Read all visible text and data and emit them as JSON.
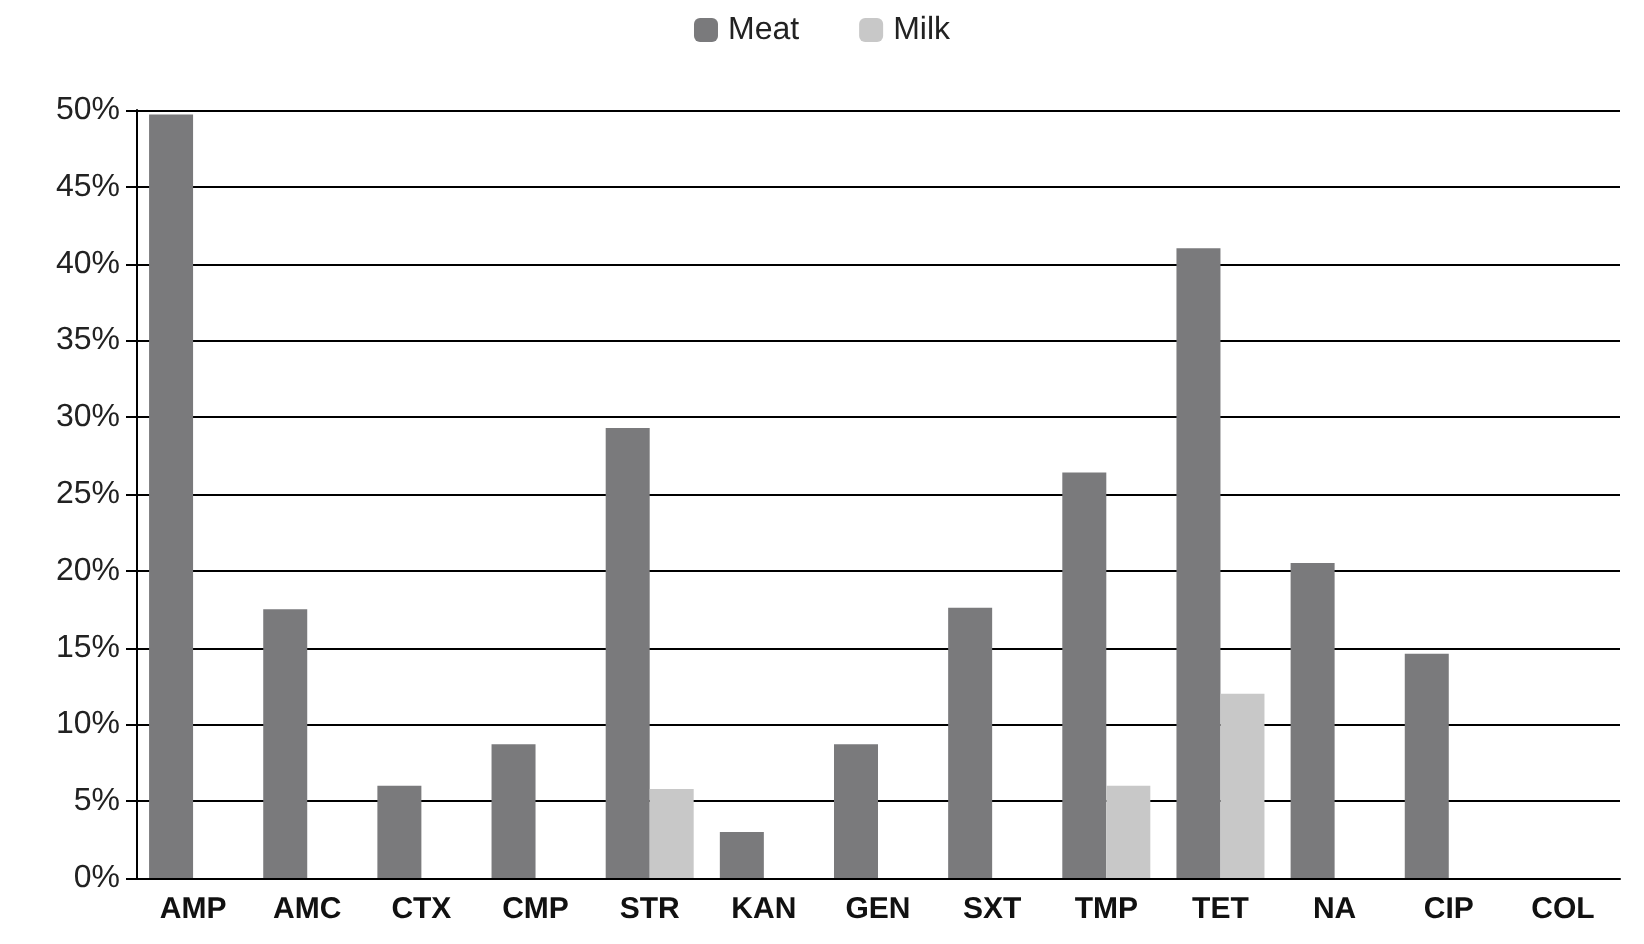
{
  "chart_data": {
    "type": "bar",
    "categories": [
      "AMP",
      "AMC",
      "CTX",
      "CMP",
      "STR",
      "KAN",
      "GEN",
      "SXT",
      "TMP",
      "TET",
      "NA",
      "CIP",
      "COL"
    ],
    "series": [
      {
        "name": "Meat",
        "color": "#7a7a7c",
        "values": [
          49.7,
          17.5,
          6,
          8.7,
          29.3,
          3,
          8.7,
          17.6,
          26.4,
          41,
          20.5,
          14.6,
          0
        ]
      },
      {
        "name": "Milk",
        "color": "#c8c8c8",
        "values": [
          0,
          0,
          0,
          0,
          5.8,
          0,
          0,
          0,
          6,
          12,
          0,
          0,
          0
        ]
      }
    ],
    "ylim": [
      0,
      50
    ],
    "yticks": [
      {
        "value": 0,
        "label": "0%"
      },
      {
        "value": 5,
        "label": "5%"
      },
      {
        "value": 10,
        "label": "10%"
      },
      {
        "value": 15,
        "label": "15%"
      },
      {
        "value": 20,
        "label": "20%"
      },
      {
        "value": 25,
        "label": "25%"
      },
      {
        "value": 30,
        "label": "30%"
      },
      {
        "value": 35,
        "label": "35%"
      },
      {
        "value": 40,
        "label": "40%"
      },
      {
        "value": 45,
        "label": "45%"
      },
      {
        "value": 50,
        "label": "50%"
      }
    ],
    "grid": "y",
    "legend": "top"
  }
}
